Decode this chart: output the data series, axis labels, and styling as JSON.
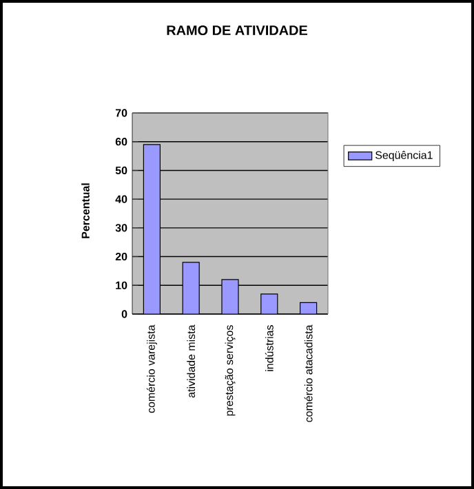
{
  "chart_data": {
    "type": "bar",
    "title": "RAMO DE ATIVIDADE",
    "ylabel": "Percentual",
    "categories": [
      "comércio varejista",
      "atividade mista",
      "prestação serviços",
      "indústrias",
      "comércio atacadista"
    ],
    "series": [
      {
        "name": "Seqüência1",
        "color": "#9999ff",
        "values": [
          59,
          18,
          12,
          7,
          4
        ]
      }
    ],
    "ylim": [
      0,
      70
    ],
    "yticks": [
      0,
      10,
      20,
      30,
      40,
      50,
      60,
      70
    ],
    "grid": "y",
    "legend": "right"
  }
}
